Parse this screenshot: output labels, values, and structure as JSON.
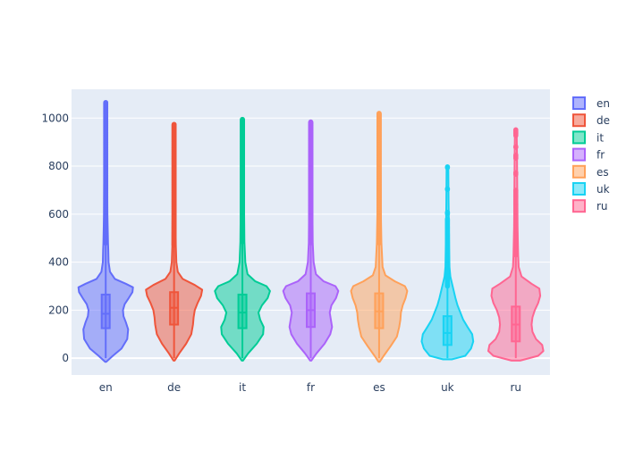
{
  "chart_data": {
    "type": "violin",
    "title": "",
    "xlabel": "",
    "ylabel": "",
    "categories": [
      "en",
      "de",
      "it",
      "fr",
      "es",
      "uk",
      "ru"
    ],
    "ylim": [
      -70,
      1120
    ],
    "yticks": [
      0,
      200,
      400,
      600,
      800,
      1000
    ],
    "grid": true,
    "legend_position": "right",
    "series": [
      {
        "name": "en",
        "color": "#636efa",
        "fill": "#aeb3fd",
        "min": -15,
        "max": 1065,
        "q1": 125,
        "median": 185,
        "q3": 265,
        "whisker_low": 0,
        "whisker_high": 480,
        "density": [
          [
            -15,
            0.02
          ],
          [
            10,
            0.25
          ],
          [
            40,
            0.55
          ],
          [
            80,
            0.75
          ],
          [
            120,
            0.78
          ],
          [
            150,
            0.7
          ],
          [
            175,
            0.62
          ],
          [
            200,
            0.6
          ],
          [
            225,
            0.66
          ],
          [
            250,
            0.8
          ],
          [
            275,
            0.93
          ],
          [
            295,
            0.95
          ],
          [
            310,
            0.7
          ],
          [
            330,
            0.32
          ],
          [
            360,
            0.15
          ],
          [
            400,
            0.1
          ],
          [
            450,
            0.09
          ],
          [
            480,
            0.08
          ],
          [
            600,
            0.06
          ],
          [
            800,
            0.05
          ],
          [
            1000,
            0.05
          ],
          [
            1065,
            0.03
          ]
        ],
        "outliers_range": [
          480,
          1065
        ]
      },
      {
        "name": "de",
        "color": "#ef553b",
        "fill": "#f7aa9d",
        "min": -10,
        "max": 975,
        "q1": 140,
        "median": 210,
        "q3": 275,
        "whisker_low": 0,
        "whisker_high": 470,
        "density": [
          [
            -10,
            0.02
          ],
          [
            20,
            0.18
          ],
          [
            60,
            0.42
          ],
          [
            100,
            0.6
          ],
          [
            140,
            0.66
          ],
          [
            170,
            0.68
          ],
          [
            200,
            0.72
          ],
          [
            230,
            0.82
          ],
          [
            260,
            0.94
          ],
          [
            285,
            0.98
          ],
          [
            305,
            0.72
          ],
          [
            330,
            0.3
          ],
          [
            360,
            0.13
          ],
          [
            400,
            0.08
          ],
          [
            470,
            0.06
          ],
          [
            600,
            0.05
          ],
          [
            800,
            0.04
          ],
          [
            975,
            0.03
          ]
        ],
        "outliers_range": [
          470,
          975
        ]
      },
      {
        "name": "it",
        "color": "#00cc96",
        "fill": "#80e6ca",
        "min": -10,
        "max": 995,
        "q1": 125,
        "median": 190,
        "q3": 265,
        "whisker_low": 0,
        "whisker_high": 485,
        "density": [
          [
            -10,
            0.02
          ],
          [
            20,
            0.2
          ],
          [
            60,
            0.5
          ],
          [
            100,
            0.72
          ],
          [
            130,
            0.74
          ],
          [
            160,
            0.62
          ],
          [
            190,
            0.56
          ],
          [
            220,
            0.68
          ],
          [
            250,
            0.88
          ],
          [
            280,
            0.96
          ],
          [
            300,
            0.84
          ],
          [
            320,
            0.45
          ],
          [
            350,
            0.18
          ],
          [
            400,
            0.1
          ],
          [
            485,
            0.07
          ],
          [
            600,
            0.06
          ],
          [
            800,
            0.05
          ],
          [
            995,
            0.03
          ]
        ],
        "outliers_range": [
          485,
          995
        ]
      },
      {
        "name": "fr",
        "color": "#ab63fa",
        "fill": "#d5b1fd",
        "min": -10,
        "max": 985,
        "q1": 130,
        "median": 200,
        "q3": 270,
        "whisker_low": 0,
        "whisker_high": 480,
        "density": [
          [
            -10,
            0.02
          ],
          [
            20,
            0.2
          ],
          [
            60,
            0.48
          ],
          [
            100,
            0.68
          ],
          [
            130,
            0.74
          ],
          [
            160,
            0.7
          ],
          [
            190,
            0.66
          ],
          [
            220,
            0.72
          ],
          [
            250,
            0.88
          ],
          [
            280,
            0.96
          ],
          [
            300,
            0.86
          ],
          [
            320,
            0.45
          ],
          [
            350,
            0.18
          ],
          [
            400,
            0.1
          ],
          [
            480,
            0.07
          ],
          [
            600,
            0.06
          ],
          [
            800,
            0.05
          ],
          [
            985,
            0.03
          ]
        ],
        "outliers_range": [
          480,
          985
        ]
      },
      {
        "name": "es",
        "color": "#ffa15a",
        "fill": "#ffd0ac",
        "min": -15,
        "max": 1020,
        "q1": 125,
        "median": 195,
        "q3": 270,
        "whisker_low": 0,
        "whisker_high": 480,
        "density": [
          [
            -15,
            0.02
          ],
          [
            10,
            0.16
          ],
          [
            50,
            0.4
          ],
          [
            90,
            0.62
          ],
          [
            130,
            0.7
          ],
          [
            160,
            0.74
          ],
          [
            190,
            0.76
          ],
          [
            220,
            0.82
          ],
          [
            250,
            0.92
          ],
          [
            280,
            0.98
          ],
          [
            300,
            0.9
          ],
          [
            320,
            0.55
          ],
          [
            345,
            0.22
          ],
          [
            380,
            0.12
          ],
          [
            480,
            0.08
          ],
          [
            600,
            0.06
          ],
          [
            800,
            0.05
          ],
          [
            1020,
            0.03
          ]
        ],
        "outliers_range": [
          480,
          1020
        ]
      },
      {
        "name": "uk",
        "color": "#19d3f3",
        "fill": "#8ce9f9",
        "min": 0,
        "max": 800,
        "q1": 55,
        "median": 105,
        "q3": 175,
        "whisker_low": 0,
        "whisker_high": 300,
        "density": [
          [
            -5,
            0.15
          ],
          [
            10,
            0.62
          ],
          [
            40,
            0.82
          ],
          [
            70,
            0.9
          ],
          [
            100,
            0.86
          ],
          [
            130,
            0.7
          ],
          [
            160,
            0.55
          ],
          [
            190,
            0.45
          ],
          [
            220,
            0.35
          ],
          [
            250,
            0.28
          ],
          [
            280,
            0.22
          ],
          [
            310,
            0.16
          ],
          [
            340,
            0.1
          ],
          [
            380,
            0.07
          ],
          [
            450,
            0.06
          ],
          [
            550,
            0.05
          ],
          [
            650,
            0.04
          ],
          [
            800,
            0.03
          ]
        ],
        "outliers_range": [
          300,
          800
        ]
      },
      {
        "name": "ru",
        "color": "#ff6692",
        "fill": "#ffb2c8",
        "min": -10,
        "max": 955,
        "q1": 70,
        "median": 140,
        "q3": 215,
        "whisker_low": 0,
        "whisker_high": 430,
        "density": [
          [
            -10,
            0.15
          ],
          [
            10,
            0.78
          ],
          [
            30,
            0.96
          ],
          [
            55,
            0.92
          ],
          [
            80,
            0.7
          ],
          [
            110,
            0.58
          ],
          [
            140,
            0.55
          ],
          [
            170,
            0.58
          ],
          [
            200,
            0.66
          ],
          [
            230,
            0.78
          ],
          [
            260,
            0.85
          ],
          [
            290,
            0.82
          ],
          [
            310,
            0.55
          ],
          [
            340,
            0.2
          ],
          [
            380,
            0.1
          ],
          [
            430,
            0.08
          ],
          [
            550,
            0.06
          ],
          [
            700,
            0.05
          ],
          [
            850,
            0.04
          ],
          [
            955,
            0.03
          ]
        ],
        "outliers_range": [
          430,
          955
        ]
      }
    ]
  }
}
